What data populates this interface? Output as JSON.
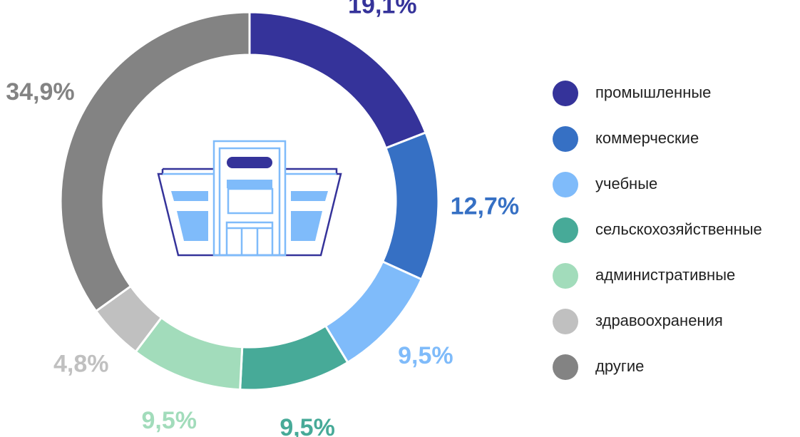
{
  "chart_data": {
    "type": "donut",
    "categories": [
      "промышленные",
      "коммерческие",
      "учебные",
      "сельскохозяйственные",
      "административные",
      "здравоохранения",
      "другие"
    ],
    "values": [
      19.1,
      12.7,
      9.5,
      9.5,
      9.5,
      4.8,
      34.9
    ],
    "value_labels": [
      "19,1%",
      "12,7%",
      "9,5%",
      "9,5%",
      "9,5%",
      "4,8%",
      "34,9%"
    ],
    "colors": [
      "#35339a",
      "#3670c4",
      "#7fbbfa",
      "#47aa98",
      "#a2dcbb",
      "#c0c0c0",
      "#838383"
    ]
  }
}
